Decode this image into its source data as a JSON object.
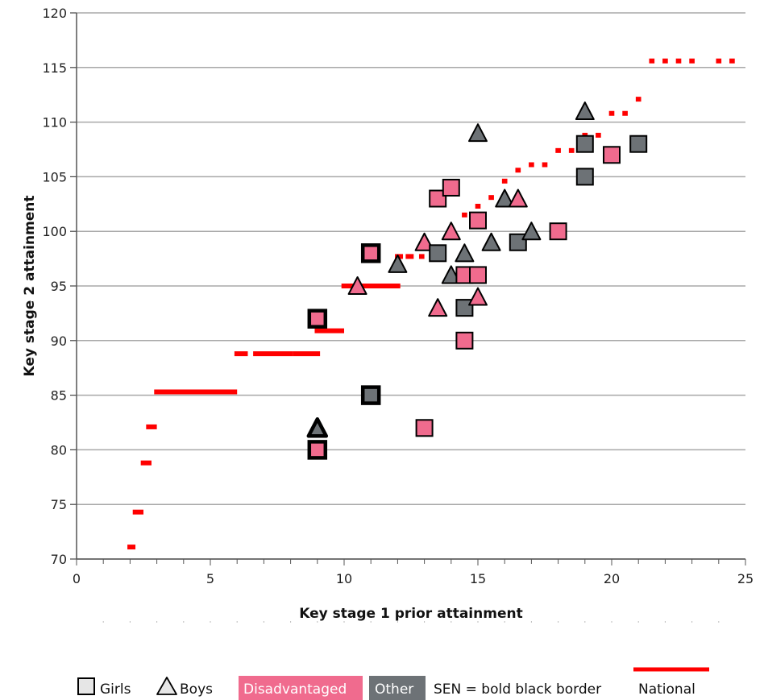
{
  "chart_data": {
    "type": "scatter",
    "title": "",
    "xlabel": "Key stage 1 prior attainment",
    "ylabel": "Key stage 2 attainment",
    "xlim": [
      0,
      25
    ],
    "ylim": [
      70,
      120
    ],
    "x_ticks": [
      "0",
      "5",
      "10",
      "15",
      "20",
      "25"
    ],
    "y_ticks": [
      "70",
      "75",
      "80",
      "85",
      "90",
      "95",
      "100",
      "105",
      "110",
      "115",
      "120"
    ],
    "grid": "horizontal",
    "legend_placement": "bottom",
    "colors": {
      "disadvantaged": "#f06b8e",
      "other": "#6d7276",
      "national": "#ff0000"
    },
    "legend": {
      "girls": "Girls",
      "boys": "Boys",
      "disadvantaged": "Disadvantaged",
      "other": "Other",
      "sen": "SEN = bold black border",
      "national": "National"
    },
    "pupils": [
      {
        "x": 9,
        "y": 92,
        "gender": "girl",
        "group": "disadvantaged",
        "sen": true
      },
      {
        "x": 9,
        "y": 80,
        "gender": "girl",
        "group": "disadvantaged",
        "sen": true
      },
      {
        "x": 9,
        "y": 82,
        "gender": "boy",
        "group": "other",
        "sen": true
      },
      {
        "x": 10.5,
        "y": 95,
        "gender": "boy",
        "group": "disadvantaged",
        "sen": false
      },
      {
        "x": 11,
        "y": 98,
        "gender": "girl",
        "group": "disadvantaged",
        "sen": true
      },
      {
        "x": 11,
        "y": 85,
        "gender": "girl",
        "group": "other",
        "sen": true
      },
      {
        "x": 12,
        "y": 97,
        "gender": "boy",
        "group": "other",
        "sen": false
      },
      {
        "x": 13,
        "y": 99,
        "gender": "boy",
        "group": "disadvantaged",
        "sen": false
      },
      {
        "x": 13,
        "y": 82,
        "gender": "girl",
        "group": "disadvantaged",
        "sen": false
      },
      {
        "x": 13.5,
        "y": 103,
        "gender": "girl",
        "group": "disadvantaged",
        "sen": false
      },
      {
        "x": 13.5,
        "y": 98,
        "gender": "girl",
        "group": "other",
        "sen": false
      },
      {
        "x": 13.5,
        "y": 93,
        "gender": "boy",
        "group": "disadvantaged",
        "sen": false
      },
      {
        "x": 14,
        "y": 104,
        "gender": "girl",
        "group": "disadvantaged",
        "sen": false
      },
      {
        "x": 14,
        "y": 100,
        "gender": "boy",
        "group": "disadvantaged",
        "sen": false
      },
      {
        "x": 14,
        "y": 96,
        "gender": "boy",
        "group": "other",
        "sen": false
      },
      {
        "x": 14.5,
        "y": 98,
        "gender": "boy",
        "group": "other",
        "sen": false
      },
      {
        "x": 14.5,
        "y": 96,
        "gender": "girl",
        "group": "disadvantaged",
        "sen": false
      },
      {
        "x": 14.5,
        "y": 93,
        "gender": "girl",
        "group": "other",
        "sen": false
      },
      {
        "x": 14.5,
        "y": 90,
        "gender": "girl",
        "group": "disadvantaged",
        "sen": false
      },
      {
        "x": 15,
        "y": 109,
        "gender": "boy",
        "group": "other",
        "sen": false
      },
      {
        "x": 15,
        "y": 101,
        "gender": "girl",
        "group": "disadvantaged",
        "sen": false
      },
      {
        "x": 15,
        "y": 96,
        "gender": "girl",
        "group": "disadvantaged",
        "sen": false
      },
      {
        "x": 15,
        "y": 94,
        "gender": "boy",
        "group": "disadvantaged",
        "sen": false
      },
      {
        "x": 15.5,
        "y": 99,
        "gender": "boy",
        "group": "other",
        "sen": false
      },
      {
        "x": 16,
        "y": 103,
        "gender": "boy",
        "group": "other",
        "sen": false
      },
      {
        "x": 16.5,
        "y": 103,
        "gender": "boy",
        "group": "disadvantaged",
        "sen": false
      },
      {
        "x": 16.5,
        "y": 99,
        "gender": "girl",
        "group": "other",
        "sen": false
      },
      {
        "x": 17,
        "y": 100,
        "gender": "boy",
        "group": "other",
        "sen": false
      },
      {
        "x": 18,
        "y": 100,
        "gender": "girl",
        "group": "disadvantaged",
        "sen": false
      },
      {
        "x": 19,
        "y": 111,
        "gender": "boy",
        "group": "other",
        "sen": false
      },
      {
        "x": 19,
        "y": 108,
        "gender": "girl",
        "group": "other",
        "sen": false
      },
      {
        "x": 19,
        "y": 105,
        "gender": "girl",
        "group": "other",
        "sen": false
      },
      {
        "x": 20,
        "y": 107,
        "gender": "girl",
        "group": "disadvantaged",
        "sen": false
      },
      {
        "x": 21,
        "y": 108,
        "gender": "girl",
        "group": "other",
        "sen": false
      }
    ],
    "national": [
      {
        "x1": 1.9,
        "x2": 2.2,
        "y": 71.1
      },
      {
        "x1": 2.1,
        "x2": 2.5,
        "y": 74.3
      },
      {
        "x1": 2.4,
        "x2": 2.8,
        "y": 78.8
      },
      {
        "x1": 2.6,
        "x2": 3.0,
        "y": 82.1
      },
      {
        "x1": 2.9,
        "x2": 6.0,
        "y": 85.3
      },
      {
        "x1": 5.9,
        "x2": 6.4,
        "y": 88.8
      },
      {
        "x1": 6.6,
        "x2": 8.1,
        "y": 88.8
      },
      {
        "x1": 8.1,
        "x2": 9.1,
        "y": 88.8
      },
      {
        "x1": 8.9,
        "x2": 10.0,
        "y": 90.9
      },
      {
        "x1": 9.9,
        "x2": 12.1,
        "y": 95.0
      },
      {
        "x1": 11.9,
        "x2": 12.2,
        "y": 97.7
      },
      {
        "x1": 12.3,
        "x2": 12.6,
        "y": 97.7
      },
      {
        "x1": 12.8,
        "x2": 13.0,
        "y": 97.7
      },
      {
        "x1": 14.4,
        "x2": 14.6,
        "y": 101.5
      },
      {
        "x1": 14.9,
        "x2": 15.1,
        "y": 102.3
      },
      {
        "x1": 15.4,
        "x2": 15.6,
        "y": 103.1
      },
      {
        "x1": 15.9,
        "x2": 16.1,
        "y": 104.6
      },
      {
        "x1": 16.4,
        "x2": 16.6,
        "y": 105.6
      },
      {
        "x1": 16.9,
        "x2": 17.1,
        "y": 106.1
      },
      {
        "x1": 17.4,
        "x2": 17.6,
        "y": 106.1
      },
      {
        "x1": 17.9,
        "x2": 18.1,
        "y": 107.4
      },
      {
        "x1": 18.4,
        "x2": 18.6,
        "y": 107.4
      },
      {
        "x1": 18.9,
        "x2": 19.1,
        "y": 108.8
      },
      {
        "x1": 19.4,
        "x2": 19.6,
        "y": 108.8
      },
      {
        "x1": 19.9,
        "x2": 20.1,
        "y": 110.8
      },
      {
        "x1": 20.4,
        "x2": 20.6,
        "y": 110.8
      },
      {
        "x1": 20.9,
        "x2": 21.1,
        "y": 112.1
      },
      {
        "x1": 21.4,
        "x2": 21.6,
        "y": 115.6
      },
      {
        "x1": 21.9,
        "x2": 22.1,
        "y": 115.6
      },
      {
        "x1": 22.4,
        "x2": 22.6,
        "y": 115.6
      },
      {
        "x1": 22.9,
        "x2": 23.1,
        "y": 115.6
      },
      {
        "x1": 23.9,
        "x2": 24.1,
        "y": 115.6
      },
      {
        "x1": 24.4,
        "x2": 24.6,
        "y": 115.6
      }
    ]
  }
}
